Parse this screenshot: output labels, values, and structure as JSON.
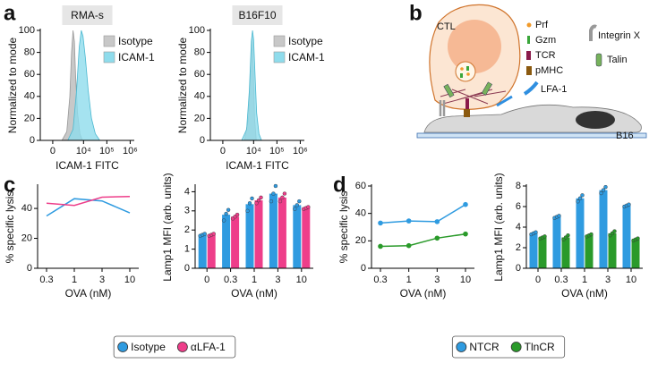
{
  "panel_labels": [
    "a",
    "b",
    "c",
    "d"
  ],
  "diagram": {
    "labels": {
      "cell": "CTL",
      "target": "B16",
      "prf": "Prf",
      "gzm": "Gzm",
      "tcr": "TCR",
      "pmhc": "pMHC",
      "lfa": "LFA-1",
      "integrin": "Integrin X",
      "talin": "Talin"
    }
  },
  "chart_data": [
    {
      "type": "area",
      "title": "RMA-s",
      "xlabel": "ICAM-1 FITC",
      "ylabel": "Normalized to mode",
      "xscale": "biexponential",
      "xlim": [
        -1500,
        1500000
      ],
      "xticks": [
        0,
        {
          "value": 10000,
          "label": "10⁴"
        },
        {
          "value": 100000,
          "label": "10⁵"
        },
        {
          "value": 1000000,
          "label": "10⁶"
        }
      ],
      "ylim": [
        0,
        100
      ],
      "yticks": [
        0,
        20,
        40,
        60,
        80,
        100
      ],
      "series": [
        {
          "name": "Isotype",
          "color": "#c8c8c8",
          "x": [
            1000,
            1800,
            2500,
            3000,
            3500,
            4000,
            4500,
            5500,
            7000,
            9000
          ],
          "values": [
            0,
            8,
            40,
            80,
            100,
            90,
            60,
            25,
            6,
            0
          ]
        },
        {
          "name": "ICAM-1",
          "color": "#8fdcec",
          "x": [
            2000,
            3500,
            5000,
            6500,
            8000,
            9500,
            12000,
            16000,
            22000,
            32000,
            50000
          ],
          "values": [
            0,
            10,
            45,
            85,
            100,
            95,
            75,
            45,
            20,
            6,
            0
          ]
        }
      ]
    },
    {
      "type": "area",
      "title": "B16F10",
      "xlabel": "ICAM-1 FITC",
      "ylabel": "Normalized to mode",
      "xscale": "biexponential",
      "xlim": [
        -1500,
        1500000
      ],
      "xticks": [
        0,
        {
          "value": 10000,
          "label": "10⁴"
        },
        {
          "value": 100000,
          "label": "10⁵"
        },
        {
          "value": 1000000,
          "label": "10⁶"
        }
      ],
      "ylim": [
        0,
        100
      ],
      "yticks": [
        0,
        20,
        40,
        60,
        80,
        100
      ],
      "series": [
        {
          "name": "Isotype",
          "color": "#c8c8c8",
          "x": [
            4000,
            6000,
            7500,
            8500,
            9500,
            11000,
            13000
          ],
          "values": [
            0,
            20,
            70,
            95,
            70,
            20,
            0
          ]
        },
        {
          "name": "ICAM-1",
          "color": "#8fdcec",
          "x": [
            3000,
            5000,
            6500,
            8000,
            9000,
            10000,
            11500,
            13500,
            17000,
            22000
          ],
          "values": [
            0,
            10,
            45,
            90,
            100,
            92,
            60,
            25,
            6,
            0
          ]
        }
      ]
    },
    {
      "type": "line",
      "xlabel": "OVA (nM)",
      "ylabel": "% specific lysis",
      "categories": [
        "0.3",
        "1",
        "3",
        "10"
      ],
      "ylim": [
        0,
        55
      ],
      "yticks": [
        0,
        20,
        40
      ],
      "markers": false,
      "series": [
        {
          "name": "Isotype",
          "color": "#2f9be0",
          "values": [
            35,
            46.5,
            45,
            37
          ]
        },
        {
          "name": "αLFA-1",
          "color": "#ee3e8a",
          "values": [
            43.5,
            42,
            47.5,
            48
          ]
        }
      ]
    },
    {
      "type": "bar",
      "xlabel": "OVA (nM)",
      "ylabel": "Lamp1 MFI (arb. units)",
      "categories": [
        "0",
        "0.3",
        "1",
        "3",
        "10"
      ],
      "ylim": [
        0,
        4.3
      ],
      "yticks": [
        0,
        1,
        2,
        3,
        4
      ],
      "series": [
        {
          "color": "#2f9be0",
          "values": [
            1.75,
            2.8,
            3.35,
            3.9,
            3.3
          ],
          "points": [
            [
              1.7,
              1.75,
              1.8
            ],
            [
              2.5,
              2.85,
              3.05
            ],
            [
              3.0,
              3.4,
              3.65
            ],
            [
              3.5,
              3.9,
              4.3
            ],
            [
              3.1,
              3.3,
              3.5
            ]
          ]
        },
        {
          "color": "#ee3e8a",
          "values": [
            1.75,
            2.7,
            3.55,
            3.7,
            3.15
          ],
          "points": [
            [
              1.7,
              1.75,
              1.8
            ],
            [
              2.6,
              2.7,
              2.8
            ],
            [
              3.4,
              3.55,
              3.7
            ],
            [
              3.5,
              3.7,
              3.9
            ],
            [
              3.1,
              3.15,
              3.2
            ]
          ]
        }
      ]
    },
    {
      "type": "line",
      "xlabel": "OVA (nM)",
      "ylabel": "% specific lysis",
      "categories": [
        "0.3",
        "1",
        "3",
        "10"
      ],
      "ylim": [
        0,
        60
      ],
      "yticks": [
        0,
        20,
        40,
        60
      ],
      "markers": true,
      "series": [
        {
          "name": "NTCR",
          "color": "#2f9be0",
          "values": [
            33,
            34.5,
            34,
            46.5
          ]
        },
        {
          "name": "TlnCR",
          "color": "#2a9a2a",
          "values": [
            16,
            16.5,
            22,
            25
          ]
        }
      ]
    },
    {
      "type": "bar",
      "xlabel": "OVA (nM)",
      "ylabel": "Lamp1 MFI (arb. units)",
      "categories": [
        "0",
        "0.3",
        "1",
        "3",
        "10"
      ],
      "ylim": [
        0,
        8
      ],
      "yticks": [
        0,
        2,
        4,
        6,
        8
      ],
      "series": [
        {
          "color": "#2f9be0",
          "values": [
            3.4,
            5.0,
            6.8,
            7.6,
            6.1
          ],
          "points": [
            [
              3.3,
              3.4,
              3.5
            ],
            [
              4.9,
              5.0,
              5.1
            ],
            [
              6.5,
              6.8,
              7.1
            ],
            [
              7.3,
              7.6,
              7.9
            ],
            [
              6.0,
              6.1,
              6.2
            ]
          ]
        },
        {
          "color": "#2a9a2a",
          "values": [
            3.0,
            3.0,
            3.2,
            3.4,
            2.8
          ],
          "points": [
            [
              2.9,
              3.0,
              3.1
            ],
            [
              2.8,
              3.0,
              3.2
            ],
            [
              3.1,
              3.2,
              3.3
            ],
            [
              3.2,
              3.4,
              3.6
            ],
            [
              2.7,
              2.8,
              2.9
            ]
          ]
        }
      ]
    }
  ]
}
